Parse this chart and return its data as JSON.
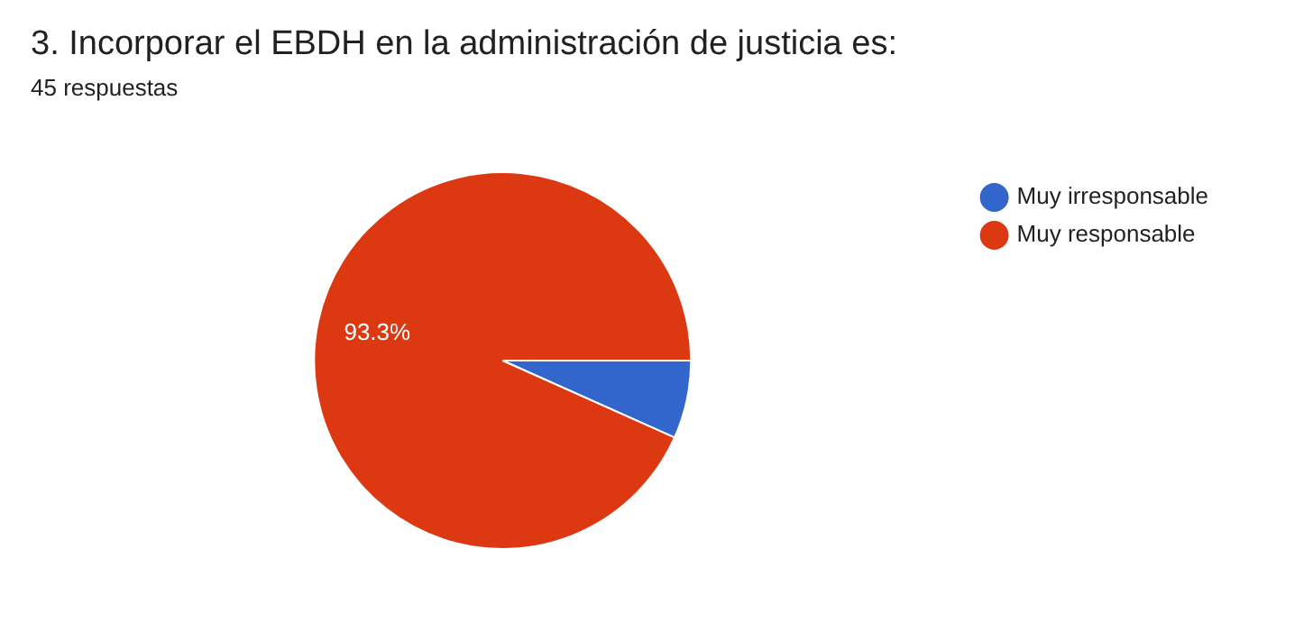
{
  "chart_data": {
    "type": "pie",
    "title": "3. Incorporar el EBDH en la administración de justicia es:",
    "subtitle": "45 respuestas",
    "categories": [
      "Muy irresponsable",
      "Muy responsable"
    ],
    "values": [
      6.7,
      93.3
    ],
    "colors": [
      "#3366cc",
      "#dc3912"
    ],
    "value_labels": [
      null,
      "93.3%"
    ],
    "legend": "top right"
  }
}
